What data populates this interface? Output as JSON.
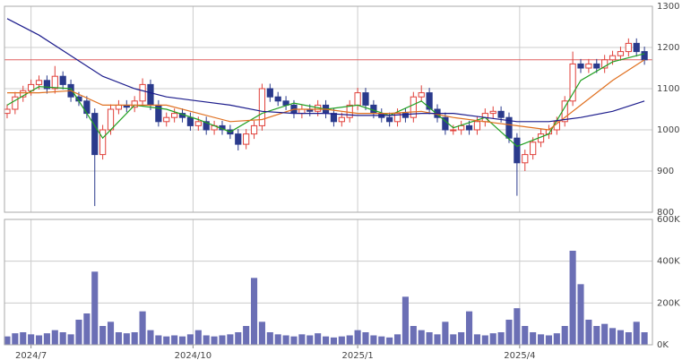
{
  "chart_data": [
    {
      "type": "candlestick",
      "x": [
        -9,
        -6,
        -3,
        0,
        3,
        6,
        9,
        12,
        15,
        18,
        21,
        24,
        27,
        30,
        33,
        36,
        39,
        42,
        45,
        48,
        51,
        54,
        57,
        60,
        63,
        66,
        69,
        72,
        75,
        78,
        81,
        84,
        87,
        90,
        93,
        96,
        99,
        102,
        105,
        108,
        111,
        114,
        117,
        120,
        123,
        126,
        129,
        132,
        135,
        138,
        141,
        144,
        147,
        150,
        153,
        156,
        159,
        162,
        165,
        168,
        171,
        174,
        177,
        180,
        183,
        186,
        189,
        192,
        195,
        198,
        201,
        204,
        207,
        210,
        213,
        216,
        219,
        222,
        225,
        228,
        231
      ],
      "open": [
        1040,
        1050,
        1080,
        1095,
        1110,
        1120,
        1100,
        1130,
        1110,
        1080,
        1070,
        1040,
        940,
        1000,
        1050,
        1060,
        1055,
        1070,
        1110,
        1060,
        1020,
        1030,
        1040,
        1030,
        1010,
        1020,
        1000,
        1010,
        1000,
        990,
        965,
        990,
        1010,
        1100,
        1080,
        1070,
        1060,
        1040,
        1050,
        1045,
        1060,
        1040,
        1020,
        1030,
        1060,
        1090,
        1060,
        1040,
        1030,
        1020,
        1040,
        1030,
        1080,
        1090,
        1050,
        1030,
        1000,
        1000,
        1010,
        1000,
        1020,
        1040,
        1045,
        1030,
        980,
        920,
        940,
        970,
        990,
        1000,
        1020,
        1070,
        1160,
        1150,
        1160,
        1150,
        1170,
        1180,
        1190,
        1210,
        1190
      ],
      "high": [
        1062,
        1092,
        1107,
        1122,
        1132,
        1132,
        1155,
        1142,
        1122,
        1092,
        1082,
        1052,
        1012,
        1062,
        1072,
        1072,
        1082,
        1125,
        1122,
        1072,
        1042,
        1052,
        1052,
        1042,
        1032,
        1032,
        1022,
        1022,
        1012,
        1002,
        1002,
        1022,
        1112,
        1112,
        1092,
        1082,
        1072,
        1062,
        1062,
        1072,
        1072,
        1052,
        1042,
        1072,
        1102,
        1102,
        1072,
        1052,
        1042,
        1052,
        1052,
        1092,
        1108,
        1102,
        1062,
        1042,
        1012,
        1022,
        1022,
        1032,
        1052,
        1057,
        1057,
        1042,
        992,
        952,
        982,
        1002,
        1012,
        1032,
        1082,
        1190,
        1172,
        1172,
        1172,
        1182,
        1192,
        1202,
        1222,
        1222,
        1202
      ],
      "low": [
        1028,
        1038,
        1068,
        1083,
        1098,
        1088,
        1088,
        1098,
        1068,
        1058,
        1028,
        815,
        928,
        988,
        1038,
        1043,
        1043,
        1058,
        1048,
        1008,
        1008,
        1018,
        1018,
        998,
        998,
        988,
        988,
        988,
        978,
        950,
        953,
        978,
        998,
        1068,
        1058,
        1048,
        1028,
        1028,
        1033,
        1033,
        1028,
        1008,
        1008,
        1018,
        1048,
        1048,
        1028,
        1018,
        1008,
        1008,
        1018,
        1018,
        1068,
        1038,
        1018,
        988,
        988,
        988,
        988,
        988,
        1008,
        1028,
        1018,
        968,
        840,
        900,
        928,
        958,
        978,
        988,
        1008,
        1058,
        1138,
        1138,
        1138,
        1138,
        1158,
        1168,
        1178,
        1178,
        1158
      ],
      "close": [
        1050,
        1080,
        1095,
        1110,
        1120,
        1100,
        1130,
        1110,
        1080,
        1070,
        1040,
        940,
        1000,
        1050,
        1060,
        1055,
        1070,
        1110,
        1060,
        1020,
        1030,
        1040,
        1030,
        1010,
        1020,
        1000,
        1010,
        1000,
        990,
        965,
        990,
        1010,
        1100,
        1080,
        1070,
        1060,
        1040,
        1050,
        1045,
        1060,
        1040,
        1020,
        1030,
        1060,
        1090,
        1060,
        1040,
        1030,
        1020,
        1040,
        1030,
        1080,
        1090,
        1050,
        1030,
        1000,
        1000,
        1010,
        1000,
        1020,
        1040,
        1045,
        1030,
        980,
        920,
        940,
        970,
        990,
        1000,
        1020,
        1070,
        1160,
        1150,
        1160,
        1150,
        1170,
        1180,
        1190,
        1210,
        1190,
        1170
      ],
      "up_color": "#e0403a",
      "down_color": "#2a3a8c",
      "lines": [
        {
          "color": "#22a022",
          "x": [
            -9,
            3,
            15,
            27,
            39,
            51,
            63,
            75,
            87,
            99,
            111,
            123,
            135,
            147,
            159,
            171,
            183,
            195,
            207,
            219,
            231
          ],
          "values": [
            1060,
            1105,
            1100,
            980,
            1060,
            1050,
            1025,
            995,
            1040,
            1065,
            1050,
            1060,
            1035,
            1070,
            1005,
            1030,
            960,
            990,
            1120,
            1165,
            1185
          ]
        },
        {
          "color": "#e07020",
          "x": [
            -9,
            3,
            15,
            27,
            39,
            51,
            63,
            75,
            87,
            99,
            111,
            123,
            135,
            147,
            159,
            171,
            183,
            195,
            207,
            219,
            231
          ],
          "values": [
            1090,
            1090,
            1095,
            1060,
            1060,
            1060,
            1040,
            1020,
            1025,
            1050,
            1050,
            1040,
            1040,
            1045,
            1030,
            1020,
            1010,
            1000,
            1060,
            1120,
            1170
          ]
        },
        {
          "color": "#1c1c8c",
          "x": [
            -9,
            3,
            15,
            27,
            39,
            51,
            63,
            75,
            87,
            99,
            111,
            123,
            135,
            147,
            159,
            171,
            183,
            195,
            207,
            219,
            231
          ],
          "values": [
            1270,
            1230,
            1180,
            1130,
            1100,
            1080,
            1070,
            1060,
            1045,
            1040,
            1040,
            1035,
            1035,
            1040,
            1040,
            1030,
            1020,
            1020,
            1030,
            1045,
            1070
          ]
        }
      ],
      "hline": {
        "value": 1170,
        "color": "#e06060"
      },
      "xlim": [
        -10,
        234
      ],
      "xticks": [
        0,
        61,
        123,
        184
      ],
      "ylim": [
        800,
        1300
      ],
      "yticks": [
        800,
        900,
        1000,
        1100,
        1200,
        1300
      ],
      "grid": true
    },
    {
      "type": "bar",
      "x": [
        -9,
        -6,
        -3,
        0,
        3,
        6,
        9,
        12,
        15,
        18,
        21,
        24,
        27,
        30,
        33,
        36,
        39,
        42,
        45,
        48,
        51,
        54,
        57,
        60,
        63,
        66,
        69,
        72,
        75,
        78,
        81,
        84,
        87,
        90,
        93,
        96,
        99,
        102,
        105,
        108,
        111,
        114,
        117,
        120,
        123,
        126,
        129,
        132,
        135,
        138,
        141,
        144,
        147,
        150,
        153,
        156,
        159,
        162,
        165,
        168,
        171,
        174,
        177,
        180,
        183,
        186,
        189,
        192,
        195,
        198,
        201,
        204,
        207,
        210,
        213,
        216,
        219,
        222,
        225,
        228,
        231
      ],
      "values": [
        40000,
        55000,
        60000,
        50000,
        45000,
        55000,
        70000,
        60000,
        50000,
        120000,
        150000,
        350000,
        90000,
        110000,
        60000,
        55000,
        60000,
        160000,
        70000,
        45000,
        40000,
        45000,
        40000,
        50000,
        70000,
        45000,
        40000,
        45000,
        50000,
        60000,
        90000,
        320000,
        110000,
        60000,
        50000,
        45000,
        40000,
        50000,
        45000,
        55000,
        40000,
        35000,
        40000,
        45000,
        70000,
        60000,
        45000,
        40000,
        35000,
        50000,
        230000,
        90000,
        70000,
        60000,
        50000,
        110000,
        50000,
        60000,
        160000,
        50000,
        45000,
        55000,
        60000,
        120000,
        175000,
        90000,
        60000,
        50000,
        45000,
        55000,
        90000,
        450000,
        290000,
        120000,
        90000,
        100000,
        80000,
        70000,
        60000,
        110000,
        60000
      ],
      "color": "#6b6fb5",
      "xlim": [
        -10,
        234
      ],
      "xticks": [
        {
          "value": 0,
          "label": "2024/7"
        },
        {
          "value": 61,
          "label": "2024/10"
        },
        {
          "value": 123,
          "label": "2025/1"
        },
        {
          "value": 184,
          "label": "2025/4"
        }
      ],
      "ylim": [
        0,
        600000
      ],
      "yticks": [
        {
          "value": 0,
          "label": "0K"
        },
        {
          "value": 200000,
          "label": "200K"
        },
        {
          "value": 400000,
          "label": "400K"
        },
        {
          "value": 600000,
          "label": "600K"
        }
      ],
      "grid": true
    }
  ]
}
